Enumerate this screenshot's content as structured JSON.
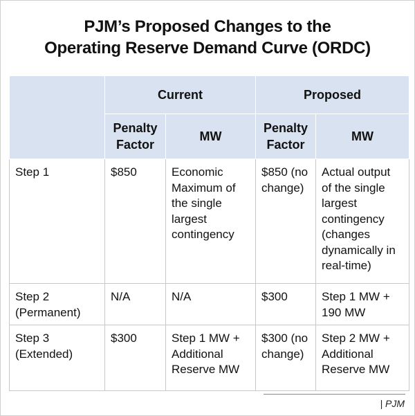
{
  "title_lines": [
    "PJM’s Proposed Changes to the",
    "Operating Reserve Demand Curve (ORDC)"
  ],
  "table": {
    "groups": [
      "Current",
      "Proposed"
    ],
    "subheaders": [
      "Penalty Factor",
      "MW",
      "Penalty Factor",
      "MW"
    ],
    "rows": [
      [
        "Step 1",
        "$850",
        "Economic Maximum of the single largest contingency",
        "$850 (no change)",
        "Actual output of the single largest contingency (changes dynamically in real-time)"
      ],
      [
        "Step 2 (Permanent)",
        "N/A",
        "N/A",
        "$300",
        "Step 1 MW + 190 MW"
      ],
      [
        "Step 3 (Extended)",
        "$300",
        "Step 1 MW + Additional Reserve MW",
        "$300 (no change)",
        "Step 2 MW + Additional Reserve MW"
      ]
    ]
  },
  "source": "| PJM"
}
